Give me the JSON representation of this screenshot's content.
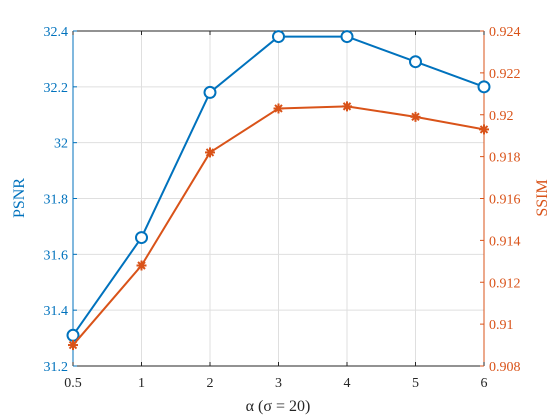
{
  "chart_data": {
    "type": "line",
    "x_tick_labels": [
      "0.5",
      "1",
      "2",
      "3",
      "4",
      "5",
      "6"
    ],
    "xlabel": "α (σ = 20)",
    "y_left": {
      "label": "PSNR",
      "lim": [
        31.2,
        32.4
      ],
      "ticks": [
        31.2,
        31.4,
        31.6,
        31.8,
        32.0,
        32.2,
        32.4
      ],
      "tick_labels": [
        "31.2",
        "31.4",
        "31.6",
        "31.8",
        "32",
        "32.2",
        "32.4"
      ],
      "color": "#0072BD"
    },
    "y_right": {
      "label": "SSIM",
      "lim": [
        0.908,
        0.924
      ],
      "ticks": [
        0.908,
        0.91,
        0.912,
        0.914,
        0.916,
        0.918,
        0.92,
        0.922,
        0.924
      ],
      "tick_labels": [
        "0.908",
        "0.91",
        "0.912",
        "0.914",
        "0.916",
        "0.918",
        "0.92",
        "0.922",
        "0.924"
      ],
      "color": "#D95319"
    },
    "series": [
      {
        "axis": "left",
        "marker": "circle",
        "color": "#0072BD",
        "values": [
          31.31,
          31.66,
          32.18,
          32.38,
          32.38,
          32.29,
          32.2
        ]
      },
      {
        "axis": "right",
        "marker": "asterisk",
        "color": "#D95319",
        "values": [
          0.909,
          0.9128,
          0.9182,
          0.9203,
          0.9204,
          0.9199,
          0.9193
        ]
      }
    ],
    "grid": true
  }
}
